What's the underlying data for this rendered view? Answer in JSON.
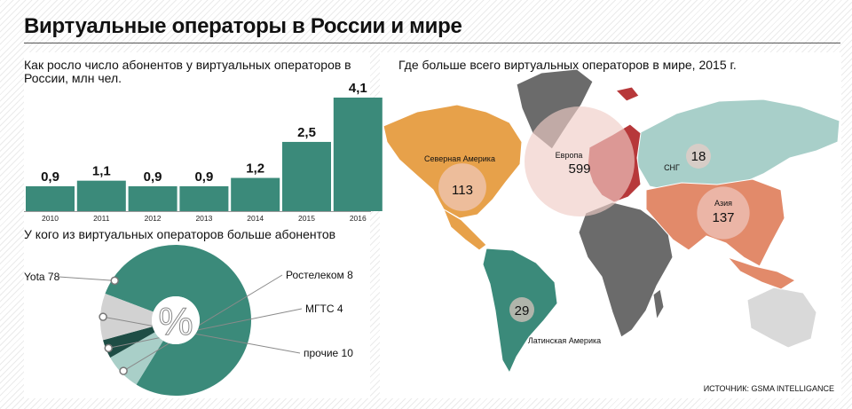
{
  "title": "Виртуальные операторы в России и мире",
  "source": "ИСТОЧНИК: GSMA INTELLIGANCE",
  "colors": {
    "teal": "#3b8a7a",
    "light_teal": "#a9cfc8",
    "dark_teal": "#1e4d45",
    "grey": "#d2d2d2",
    "orange": "#e7a14a",
    "red": "#b7383a",
    "salmon": "#e28a6a",
    "mint": "#a8cfc9",
    "dark_grey": "#6b6b6b",
    "pale_grey": "#d9d9d9"
  },
  "chart_data": [
    {
      "type": "bar",
      "title": "Как росло число абонентов у виртуальных операторов в России, млн чел.",
      "categories": [
        "2010",
        "2011",
        "2012",
        "2013",
        "2014",
        "2015",
        "2016"
      ],
      "values": [
        0.9,
        1.1,
        0.9,
        0.9,
        1.2,
        2.5,
        4.1
      ],
      "value_labels": [
        "0,9",
        "1,1",
        "0,9",
        "0,9",
        "1,2",
        "2,5",
        "4,1"
      ],
      "xlabel": "",
      "ylabel": "",
      "ylim": [
        0,
        4.1
      ],
      "grid": false
    },
    {
      "type": "pie",
      "title": "У кого из виртуальных операторов больше абонентов",
      "center_label": "%",
      "slices": [
        {
          "name": "Yota",
          "value": 78,
          "label": "Yota 78"
        },
        {
          "name": "Ростелеком",
          "value": 8,
          "label": "Ростелеком 8"
        },
        {
          "name": "МГТС",
          "value": 4,
          "label": "МГТС 4"
        },
        {
          "name": "прочие",
          "value": 10,
          "label": "прочие 10"
        }
      ]
    },
    {
      "type": "bubble-map",
      "title": "Где больше всего виртуальных операторов в мире, 2015 г.",
      "regions": [
        {
          "name": "Северная Америка",
          "value": 113
        },
        {
          "name": "Европа",
          "value": 599
        },
        {
          "name": "СНГ",
          "value": 18
        },
        {
          "name": "Азия",
          "value": 137
        },
        {
          "name": "Латинская Америка",
          "value": 29
        }
      ]
    }
  ]
}
